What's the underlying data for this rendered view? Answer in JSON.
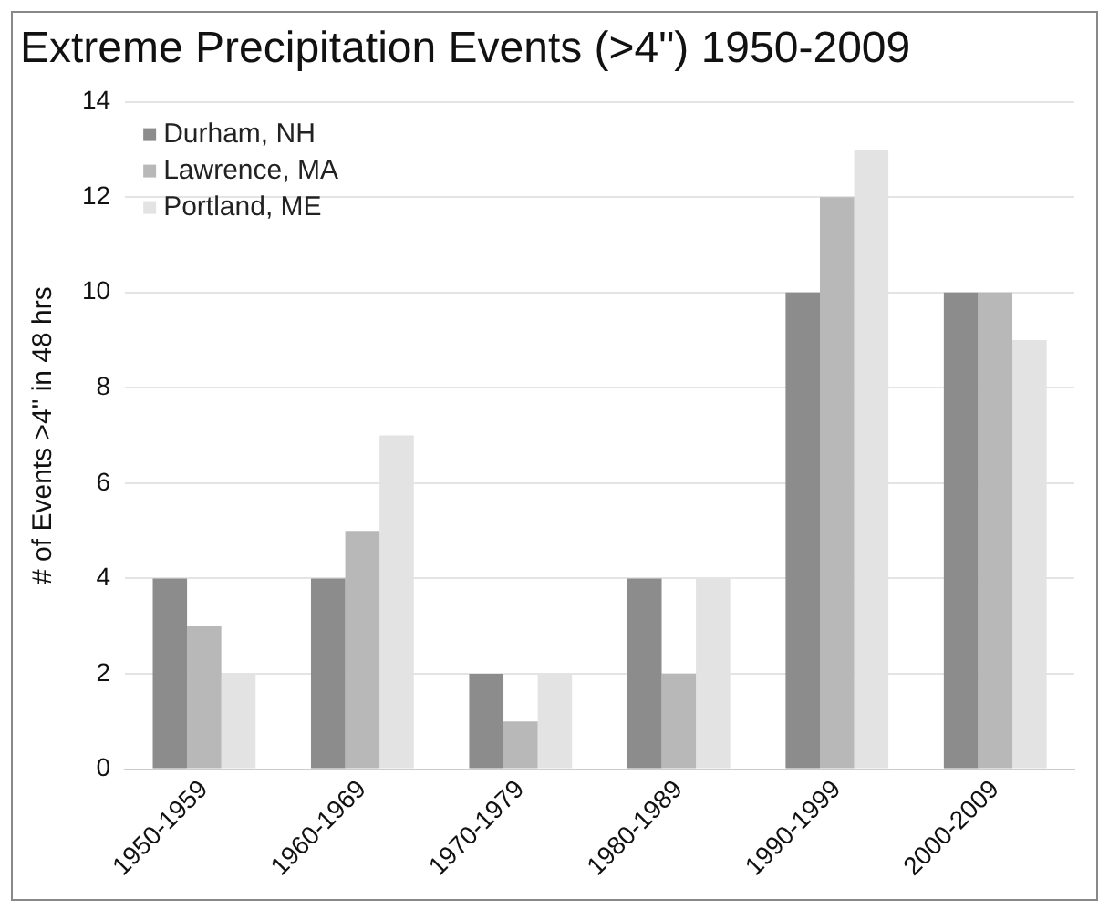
{
  "chart_data": {
    "type": "bar",
    "title": "Extreme Precipitation Events (>4\") 1950-2009",
    "ylabel": "# of Events >4\" in 48 hrs",
    "categories": [
      "1950-1959",
      "1960-1969",
      "1970-1979",
      "1980-1989",
      "1990-1999",
      "2000-2009"
    ],
    "series": [
      {
        "name": "Durham, NH",
        "color": "#8c8c8c",
        "values": [
          4,
          4,
          2,
          4,
          10,
          10
        ]
      },
      {
        "name": "Lawrence, MA",
        "color": "#b8b8b8",
        "values": [
          3,
          5,
          1,
          2,
          12,
          10
        ]
      },
      {
        "name": "Portland, ME",
        "color": "#e3e3e3",
        "values": [
          2,
          7,
          2,
          4,
          13,
          9
        ]
      }
    ],
    "ylim": [
      0,
      14
    ],
    "yticks": [
      0,
      2,
      4,
      6,
      8,
      10,
      12,
      14
    ],
    "grid": "y",
    "legend": "top left"
  }
}
